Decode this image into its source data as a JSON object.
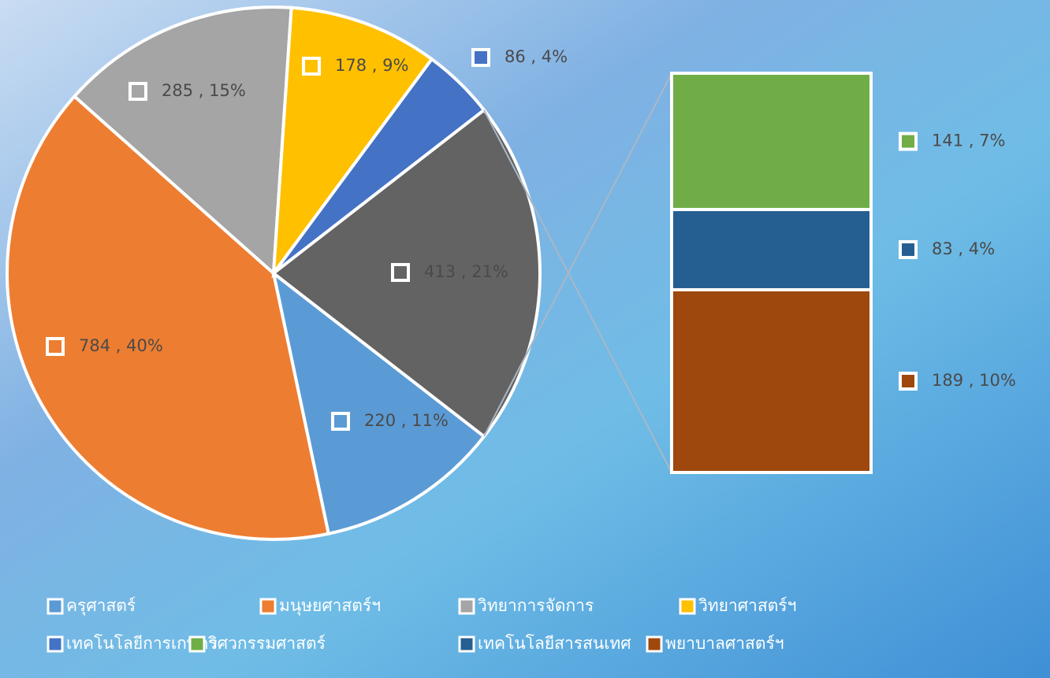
{
  "chart_data": {
    "type": "pie",
    "pie": {
      "categories": [
        "ครุศาสตร์",
        "มนุษยศาสตร์ฯ",
        "วิทยาการจัดการ",
        "วิทยาศาสตร์ฯ",
        "เทคโนโลยีการเกษตร",
        null
      ],
      "values": [
        220,
        784,
        285,
        178,
        86,
        413
      ],
      "value_labels": [
        "220 , 11%",
        "784 , 40%",
        "285 , 15%",
        "178 , 9%",
        "86 , 4%",
        "413 , 21%"
      ],
      "colors": [
        "#5b9bd5",
        "#ed7d31",
        "#a5a5a5",
        "#ffc000",
        "#4472c4",
        "#636363"
      ]
    },
    "bar": {
      "categories": [
        "วิศวกรรมศาสตร์",
        "เทคโนโลยีสารสนเทศ",
        "พยาบาลศาสตร์ฯ"
      ],
      "values": [
        141,
        83,
        189
      ],
      "value_labels": [
        "141 , 7%",
        "83 , 4%",
        "189 , 10%"
      ],
      "colors": [
        "#70ad47",
        "#255e91",
        "#9e480e"
      ]
    }
  }
}
